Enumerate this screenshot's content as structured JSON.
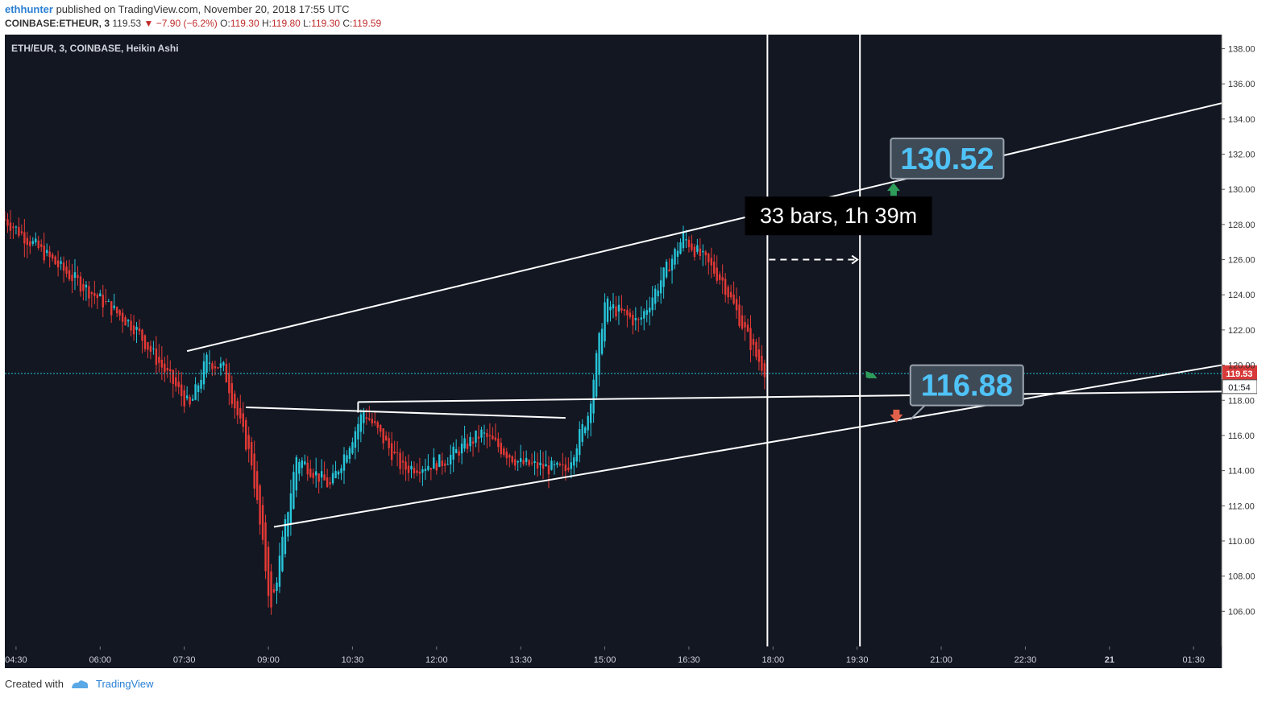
{
  "header": {
    "user": "ethhunter",
    "published": "published on TradingView.com, November 20, 2018 17:55 UTC",
    "symbol": "COINBASE:ETHEUR, 3",
    "last": "119.53",
    "change": "−7.90 (−6.2%)",
    "o_label": "O:",
    "o_value": "119.30",
    "h_label": "H:",
    "h_value": "119.80",
    "l_label": "L:",
    "l_value": "119.30",
    "c_label": "C:",
    "c_value": "119.59"
  },
  "chart_data": {
    "type": "candlestick",
    "title": "ETH/EUR, 3, COINBASE, Heikin Ashi",
    "x_ticks": [
      "04:30",
      "06:00",
      "07:30",
      "09:00",
      "10:30",
      "12:00",
      "13:30",
      "15:00",
      "16:30",
      "18:00",
      "19:30",
      "21:00",
      "22:30",
      "21",
      "01:30"
    ],
    "y_ticks": [
      "106.00",
      "108.00",
      "110.00",
      "112.00",
      "114.00",
      "116.00",
      "118.00",
      "120.00",
      "122.00",
      "124.00",
      "126.00",
      "128.00",
      "130.00",
      "132.00",
      "134.00",
      "136.00",
      "138.00"
    ],
    "ylim": [
      104.0,
      138.8
    ],
    "xlim_hours": [
      4.3,
      26.0
    ],
    "last_price": "119.53",
    "countdown": "01:54",
    "price_path_hours": [
      4.3,
      5.3,
      6.6,
      7.6,
      7.9,
      8.2,
      8.7,
      9.05,
      9.5,
      10.1,
      10.7,
      11.4,
      12.1,
      12.8,
      13.5,
      14.3,
      14.7,
      15.0,
      15.6,
      16.4,
      17.1,
      17.7,
      17.9
    ],
    "price_path_values": [
      128.3,
      125.5,
      122.2,
      117.6,
      120.3,
      119.8,
      114.5,
      106.0,
      114.8,
      113.1,
      117.4,
      114.1,
      114.5,
      116.1,
      114.4,
      114.0,
      117.2,
      123.5,
      122.4,
      127.3,
      124.8,
      120.5,
      119.5
    ],
    "annotations": {
      "upper_target": "130.52",
      "lower_target": "116.88",
      "range_label": "33 bars, 1h 39m"
    },
    "colors": {
      "up": "#26c6da",
      "down": "#e53935",
      "background": "#131722",
      "lines": "#ffffff"
    }
  },
  "footer": {
    "created_with": "Created with",
    "brand": "TradingView"
  }
}
